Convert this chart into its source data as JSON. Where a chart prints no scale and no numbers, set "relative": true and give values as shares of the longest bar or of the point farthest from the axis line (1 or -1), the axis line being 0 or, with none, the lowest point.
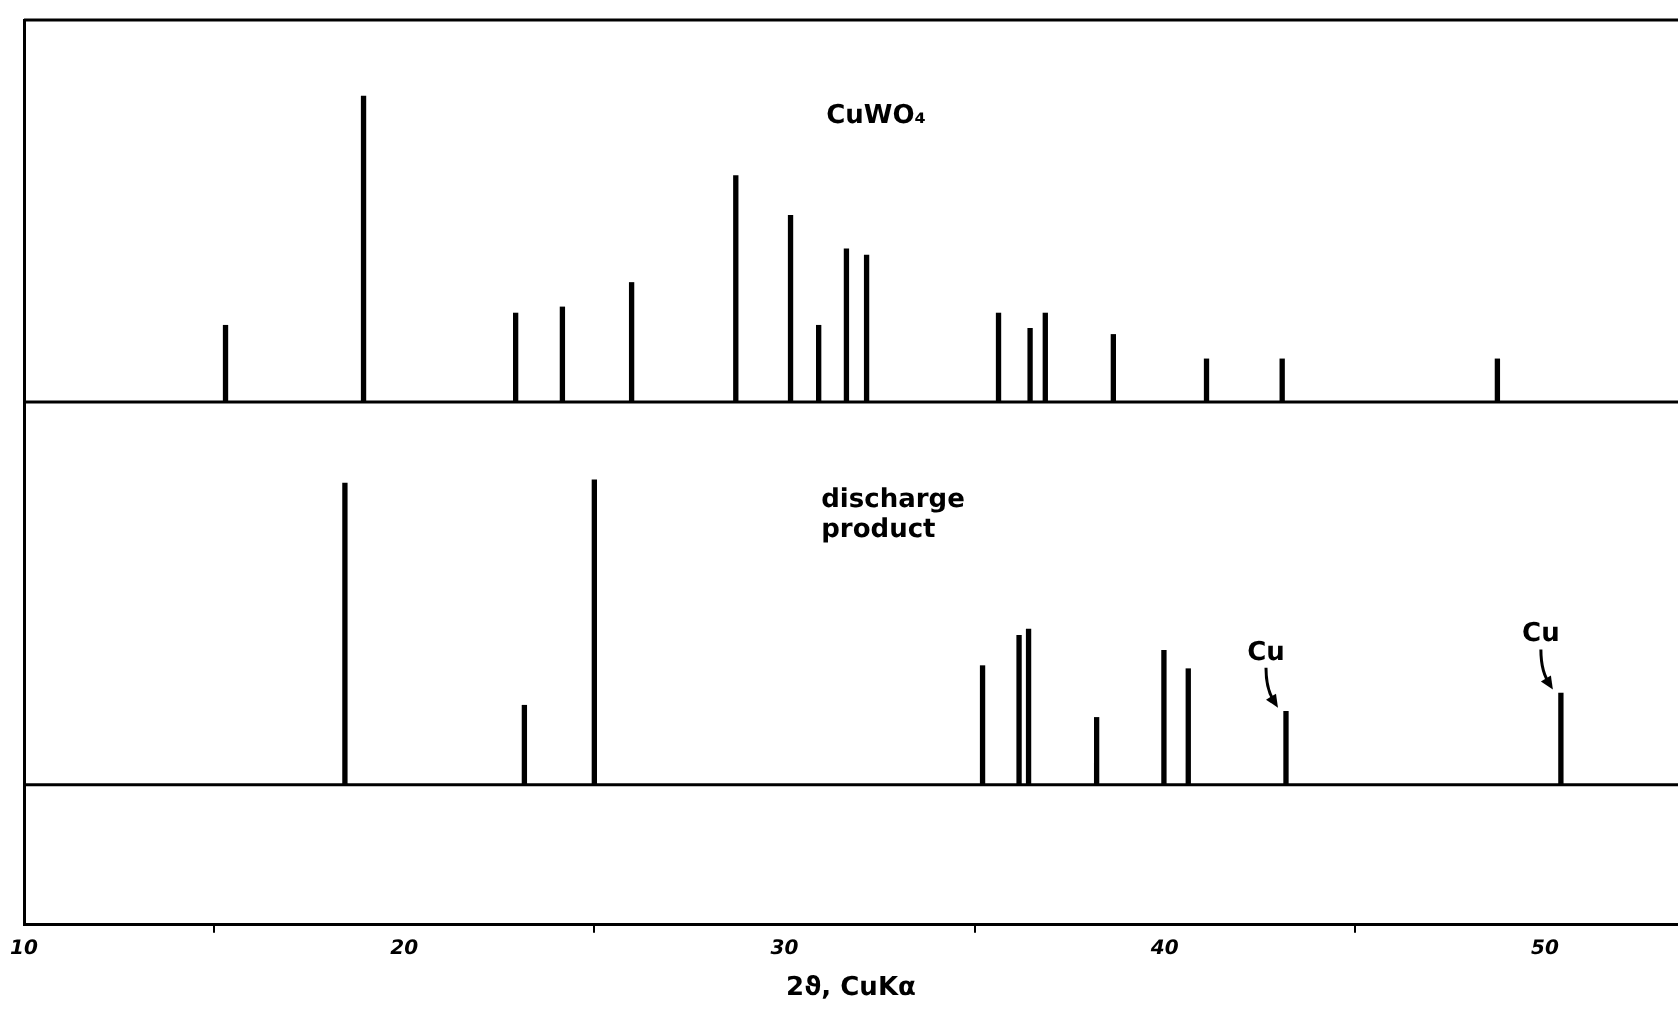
{
  "chart_data": [
    {
      "type": "bar",
      "relative": true,
      "xlim": [
        10,
        53.5
      ],
      "tick_labels": false,
      "legend": false,
      "series": [
        {
          "name": "CuWO₄",
          "color": "#000000",
          "x": [
            15.3,
            18.93,
            22.93,
            24.16,
            25.98,
            28.72,
            30.16,
            30.9,
            31.63,
            32.16,
            35.63,
            36.46,
            36.86,
            38.65,
            41.1,
            43.09,
            48.75
          ],
          "values": [
            0.25,
            1,
            0.29,
            0.31,
            0.39,
            0.74,
            0.61,
            0.25,
            0.5,
            0.48,
            0.29,
            0.24,
            0.29,
            0.22,
            0.14,
            0.14,
            0.14
          ]
        }
      ]
    },
    {
      "type": "bar",
      "relative": true,
      "xlim": [
        10,
        53.5
      ],
      "xticks": [
        10,
        20,
        30,
        40,
        50
      ],
      "tick_labels": "x",
      "legend": false,
      "xlabel": "2ϑ, CuKα",
      "series": [
        {
          "name": "discharge product",
          "color": "#000000",
          "x": [
            18.44,
            23.16,
            25.0,
            35.21,
            36.17,
            36.42,
            38.21,
            39.98,
            40.62,
            43.19,
            50.42
          ],
          "values": [
            0.99,
            0.26,
            1,
            0.39,
            0.49,
            0.51,
            0.22,
            0.44,
            0.38,
            0.24,
            0.3
          ]
        }
      ],
      "annotations": [
        {
          "text": "Cu",
          "x": 43.19,
          "y": 0.24
        },
        {
          "text": "Cu",
          "x": 50.42,
          "y": 0.3
        }
      ]
    }
  ]
}
